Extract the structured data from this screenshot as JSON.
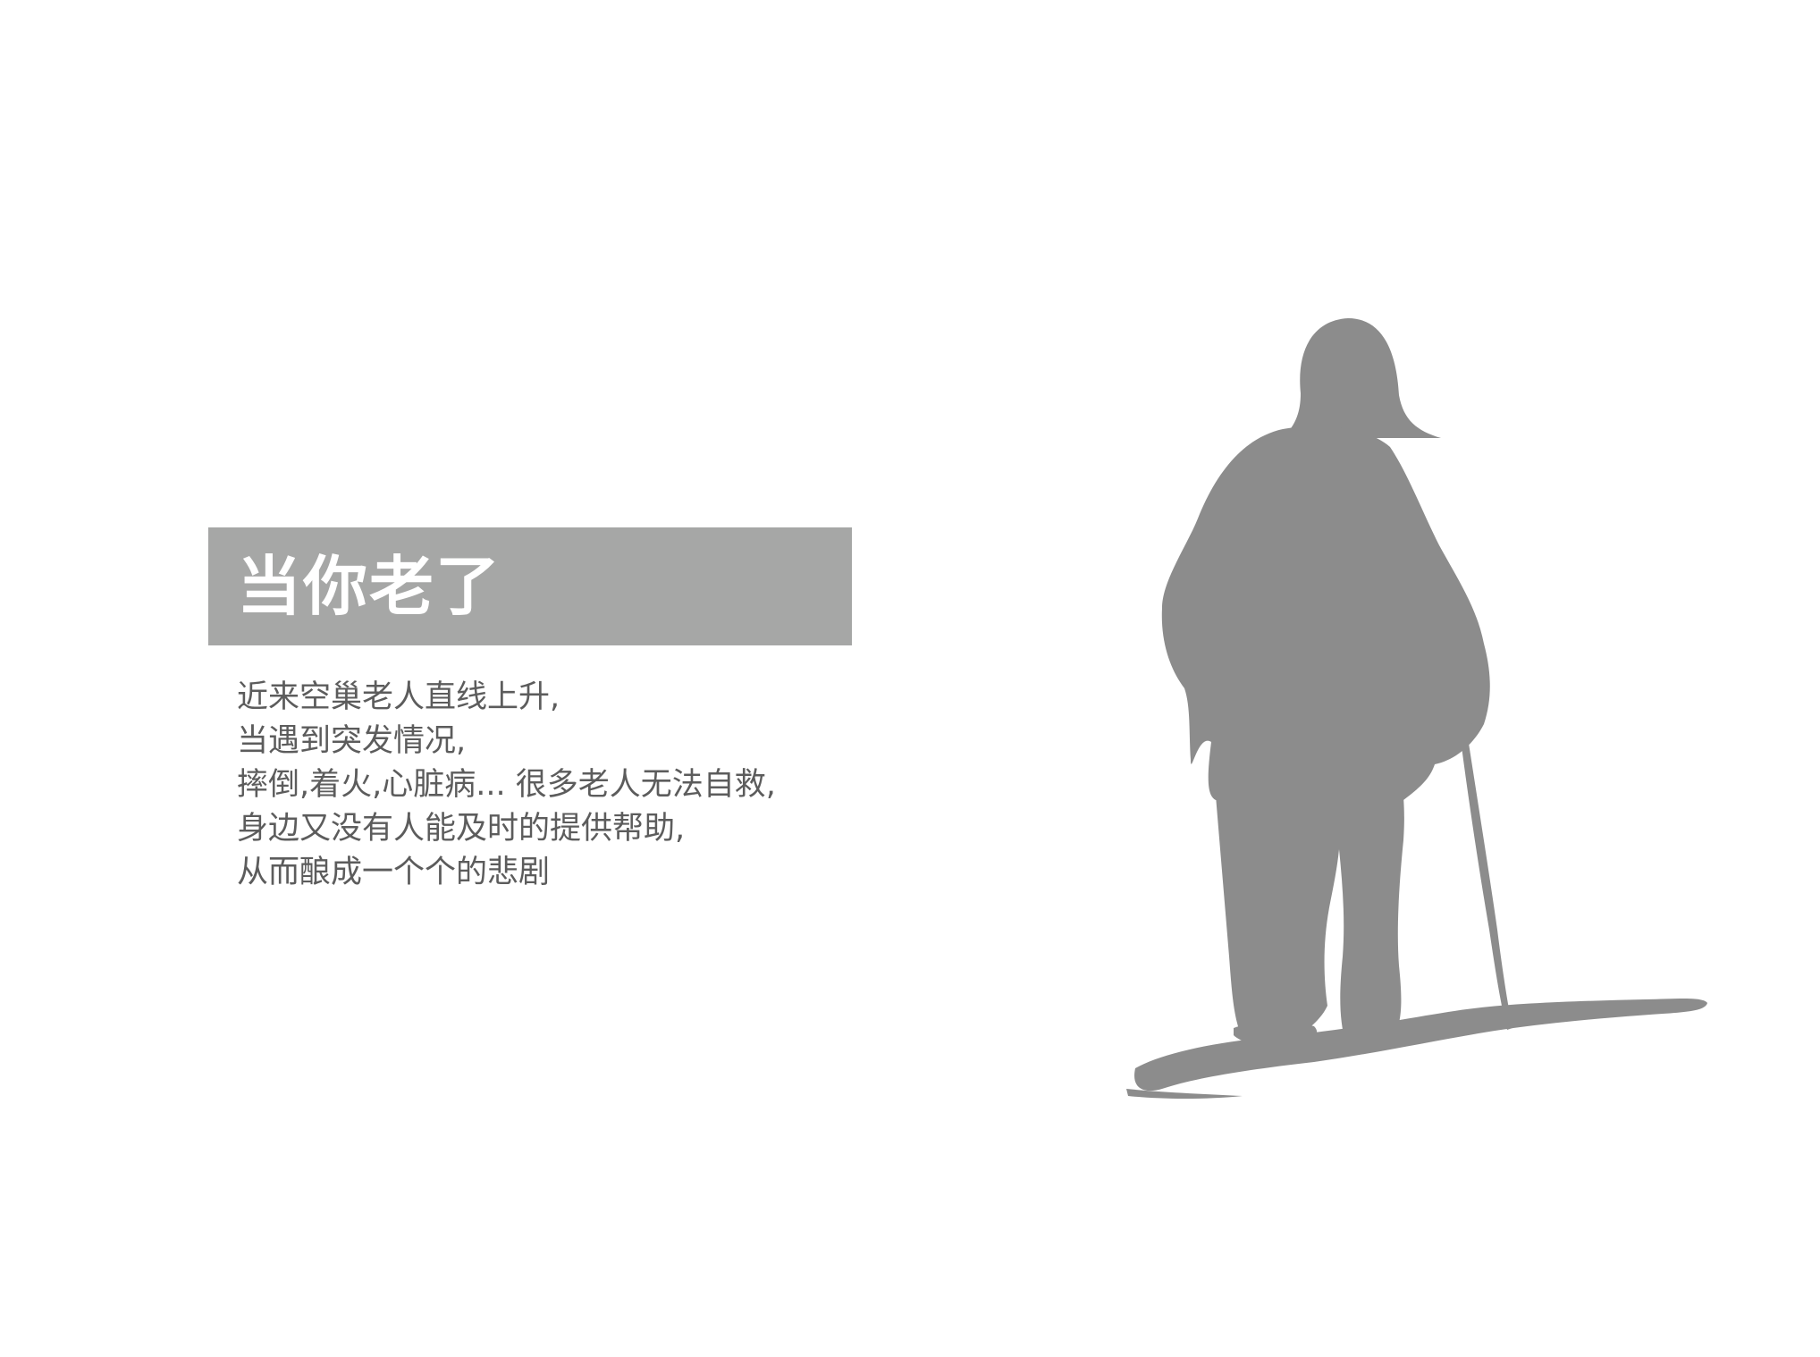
{
  "slide": {
    "title": "当你老了",
    "body_lines": [
      "近来空巢老人直线上升,",
      "当遇到突发情况,",
      "摔倒,着火,心脏病... 很多老人无法自救,",
      "身边又没有人能及时的提供帮助,",
      "从而酿成一个个的悲剧"
    ]
  },
  "illustration": {
    "icon": "elderly-man-with-cane-silhouette",
    "color": "#8c8c8c"
  },
  "colors": {
    "title_band": "#a6a7a6",
    "title_text": "#ffffff",
    "body_text": "#5c5c5c",
    "background": "#ffffff"
  }
}
